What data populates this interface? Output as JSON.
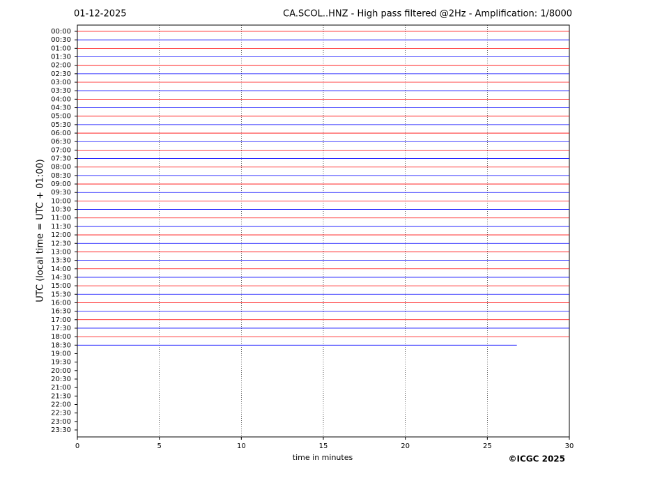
{
  "chart_data": {
    "type": "helicorder",
    "title_left": "01-12-2025",
    "title": "CA.SCOL..HNZ - High pass filtered @2Hz - Amplification: 1/8000",
    "xlabel": "time in minutes",
    "ylabel": "UTC (local time = UTC + 01:00)",
    "credit": "©ICGC 2025",
    "xlim": [
      0,
      30
    ],
    "xticks": [
      0,
      5,
      10,
      15,
      20,
      25,
      30
    ],
    "grid": true,
    "colors": [
      "#ff0000",
      "#0000ff"
    ],
    "categories": [
      "00:00",
      "00:30",
      "01:00",
      "01:30",
      "02:00",
      "02:30",
      "03:00",
      "03:30",
      "04:00",
      "04:30",
      "05:00",
      "05:30",
      "06:00",
      "06:30",
      "07:00",
      "07:30",
      "08:00",
      "08:30",
      "09:00",
      "09:30",
      "10:00",
      "10:30",
      "11:00",
      "11:30",
      "12:00",
      "12:30",
      "13:00",
      "13:30",
      "14:00",
      "14:30",
      "15:00",
      "15:30",
      "16:00",
      "16:30",
      "17:00",
      "17:30",
      "18:00",
      "18:30",
      "19:00",
      "19:30",
      "20:00",
      "20:30",
      "21:00",
      "21:30",
      "22:00",
      "22:30",
      "23:00",
      "23:30"
    ],
    "values": [
      30,
      30,
      30,
      30,
      30,
      30,
      30,
      30,
      30,
      30,
      30,
      30,
      30,
      30,
      30,
      30,
      30,
      30,
      30,
      30,
      30,
      30,
      30,
      30,
      30,
      30,
      30,
      30,
      30,
      30,
      30,
      30,
      30,
      30,
      30,
      30,
      30,
      26.8,
      null,
      null,
      null,
      null,
      null,
      null,
      null,
      null,
      null,
      null
    ]
  }
}
